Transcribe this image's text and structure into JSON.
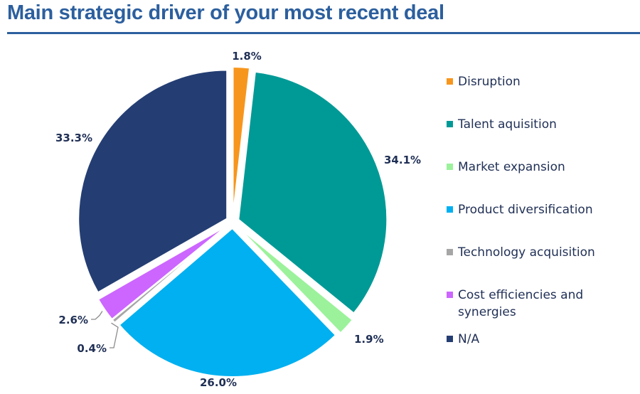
{
  "title": "Main strategic driver of your most recent deal",
  "chart_data": {
    "type": "pie",
    "slices": [
      {
        "name": "Disruption",
        "value": 1.8,
        "label": "1.8%",
        "color": "#f7961d"
      },
      {
        "name": "Talent aquisition",
        "value": 34.1,
        "label": "34.1%",
        "color": "#009a96"
      },
      {
        "name": "Market expansion",
        "value": 1.9,
        "label": "1.9%",
        "color": "#9bf29b"
      },
      {
        "name": "Product diversification",
        "value": 26.0,
        "label": "26.0%",
        "color": "#00b0f0"
      },
      {
        "name": "Technology acquisition",
        "value": 0.4,
        "label": "0.4%",
        "color": "#a6a6a6"
      },
      {
        "name": "Cost efficiencies and synergies",
        "value": 2.6,
        "label": "2.6%",
        "color": "#cc66ff"
      },
      {
        "name": "N/A",
        "value": 33.3,
        "label": "33.3%",
        "color": "#243e73"
      }
    ],
    "start_angle_deg": 0,
    "direction": "clockwise",
    "legend_position": "right"
  }
}
